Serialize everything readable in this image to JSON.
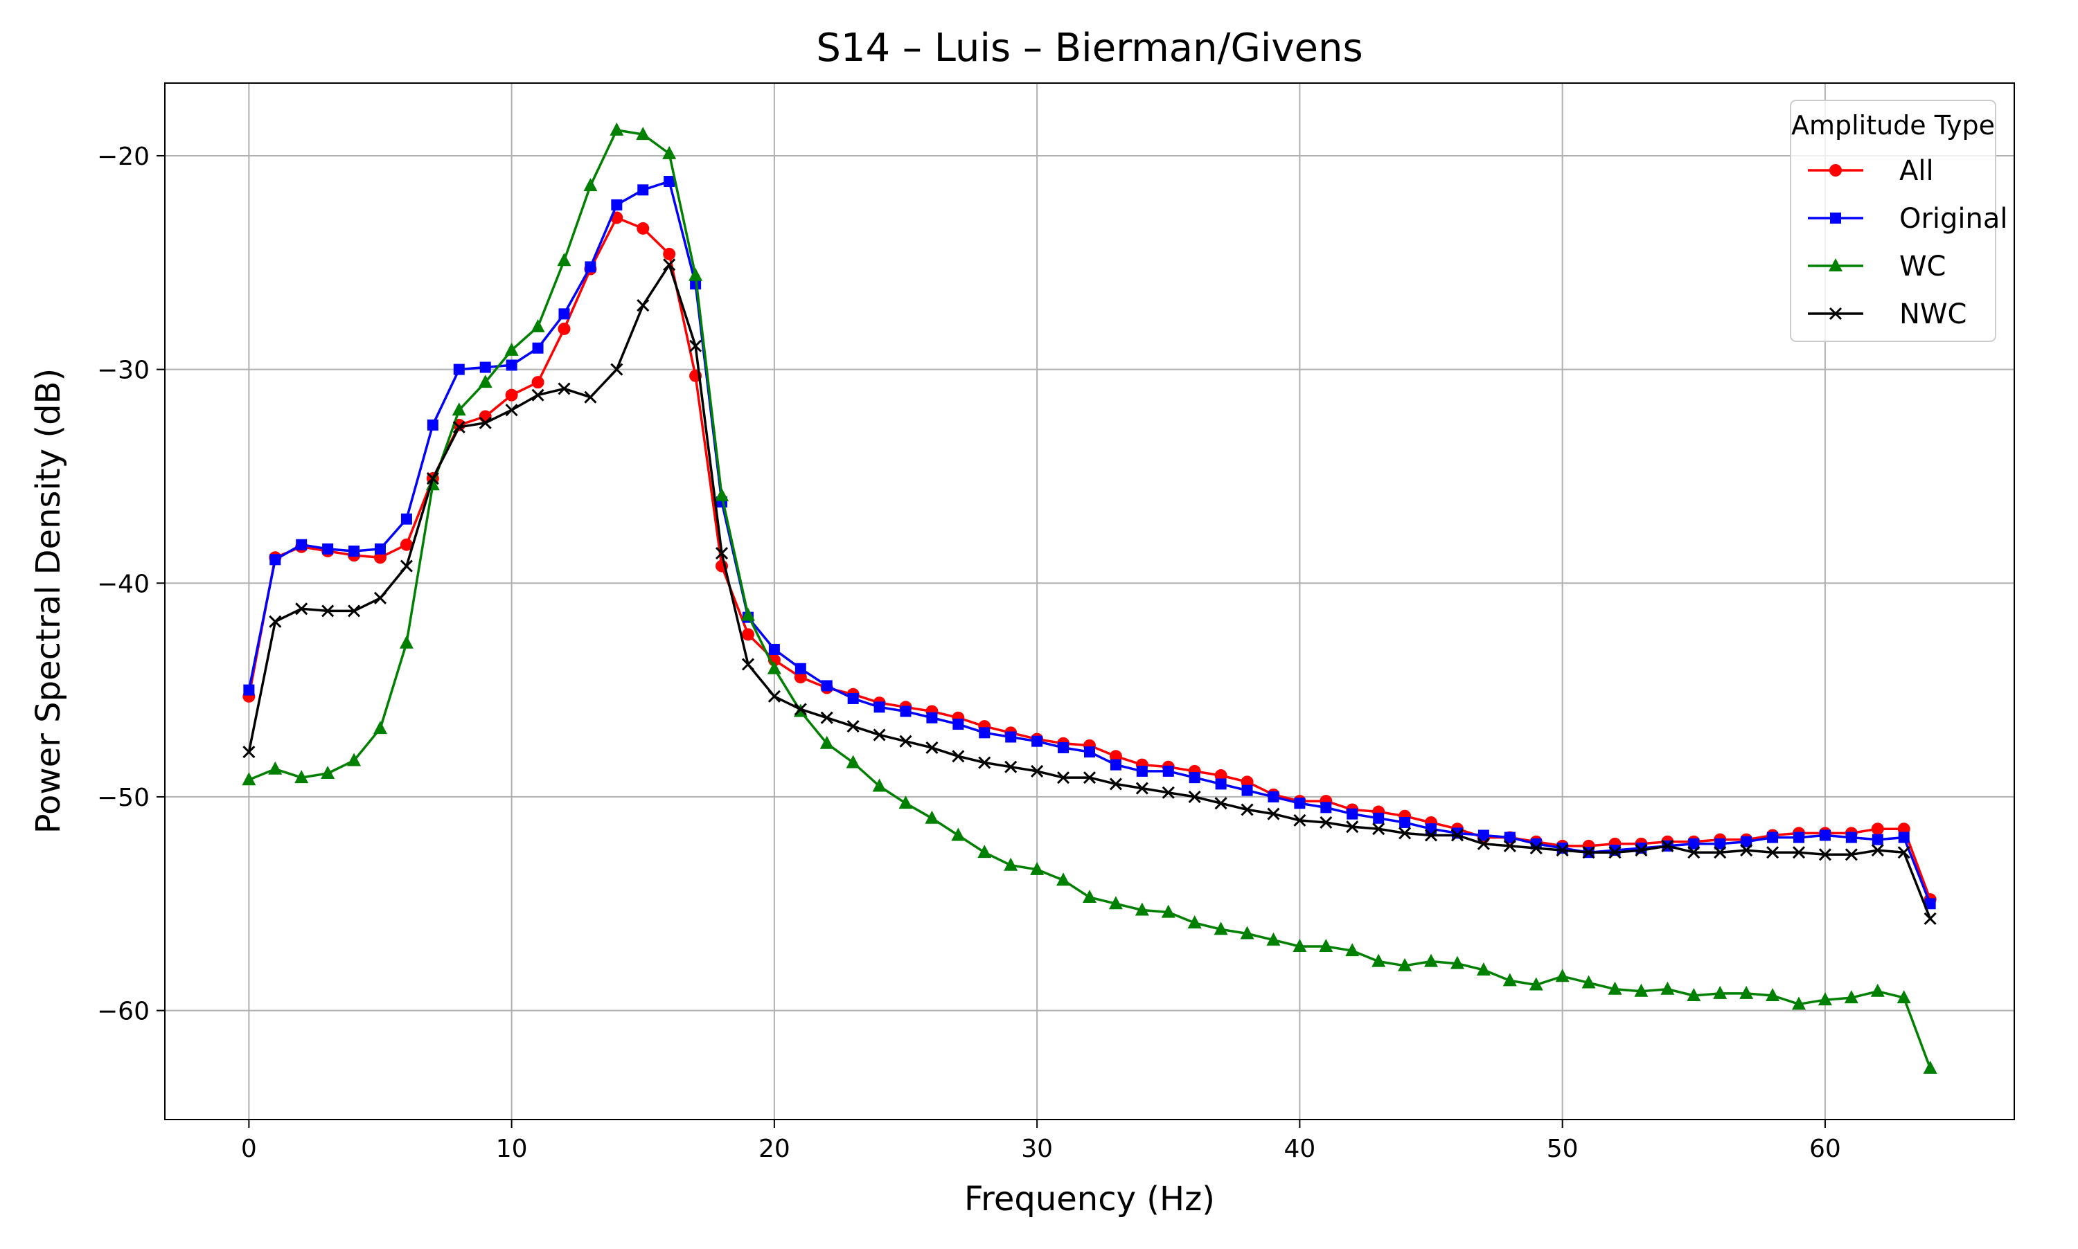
{
  "chart_data": {
    "type": "line",
    "title": "S14 – Luis – Bierman/Givens",
    "xlabel": "Frequency (Hz)",
    "ylabel": "Power Spectral Density (dB)",
    "xlim": [
      -3.2,
      67.2
    ],
    "ylim": [
      -65.1,
      -16.6
    ],
    "xticks": [
      0,
      10,
      20,
      30,
      40,
      50,
      60
    ],
    "xtick_labels": [
      "0",
      "10",
      "20",
      "30",
      "40",
      "50",
      "60"
    ],
    "yticks": [
      -20,
      -30,
      -40,
      -50,
      -60
    ],
    "ytick_labels": [
      "−20",
      "−30",
      "−40",
      "−50",
      "−60"
    ],
    "grid": true,
    "legend": {
      "title": "Amplitude Type",
      "position": "top-right"
    },
    "x": [
      0,
      1,
      2,
      3,
      4,
      5,
      6,
      7,
      8,
      9,
      10,
      11,
      12,
      13,
      14,
      15,
      16,
      17,
      18,
      19,
      20,
      21,
      22,
      23,
      24,
      25,
      26,
      27,
      28,
      29,
      30,
      31,
      32,
      33,
      34,
      35,
      36,
      37,
      38,
      39,
      40,
      41,
      42,
      43,
      44,
      45,
      46,
      47,
      48,
      49,
      50,
      51,
      52,
      53,
      54,
      55,
      56,
      57,
      58,
      59,
      60,
      61,
      62,
      63,
      64
    ],
    "series": [
      {
        "name": "All",
        "color": "#ff0000",
        "marker": "circle",
        "values": [
          -45.3,
          -38.8,
          -38.3,
          -38.5,
          -38.7,
          -38.8,
          -38.2,
          -35.1,
          -32.6,
          -32.2,
          -31.2,
          -30.6,
          -28.1,
          -25.3,
          -22.9,
          -23.4,
          -24.6,
          -30.3,
          -39.2,
          -42.4,
          -43.6,
          -44.4,
          -44.9,
          -45.2,
          -45.6,
          -45.8,
          -46.0,
          -46.3,
          -46.7,
          -47.0,
          -47.3,
          -47.5,
          -47.6,
          -48.1,
          -48.5,
          -48.6,
          -48.8,
          -49.0,
          -49.3,
          -49.9,
          -50.2,
          -50.2,
          -50.6,
          -50.7,
          -50.9,
          -51.2,
          -51.5,
          -51.9,
          -51.9,
          -52.1,
          -52.3,
          -52.3,
          -52.2,
          -52.2,
          -52.1,
          -52.1,
          -52.0,
          -52.0,
          -51.8,
          -51.7,
          -51.7,
          -51.7,
          -51.5,
          -51.5,
          -54.8
        ]
      },
      {
        "name": "Original",
        "color": "#0000ff",
        "marker": "square",
        "values": [
          -45.0,
          -38.9,
          -38.2,
          -38.4,
          -38.5,
          -38.4,
          -37.0,
          -32.6,
          -30.0,
          -29.9,
          -29.8,
          -29.0,
          -27.4,
          -25.2,
          -22.3,
          -21.6,
          -21.2,
          -26.0,
          -36.2,
          -41.6,
          -43.1,
          -44.0,
          -44.8,
          -45.4,
          -45.8,
          -46.0,
          -46.3,
          -46.6,
          -47.0,
          -47.2,
          -47.4,
          -47.7,
          -47.9,
          -48.5,
          -48.8,
          -48.8,
          -49.1,
          -49.4,
          -49.7,
          -50.0,
          -50.3,
          -50.5,
          -50.8,
          -51.0,
          -51.2,
          -51.5,
          -51.7,
          -51.8,
          -51.9,
          -52.2,
          -52.4,
          -52.6,
          -52.5,
          -52.4,
          -52.3,
          -52.2,
          -52.2,
          -52.1,
          -51.9,
          -51.9,
          -51.8,
          -51.9,
          -52.0,
          -51.9,
          -55.0
        ]
      },
      {
        "name": "WC",
        "color": "#008000",
        "marker": "triangle",
        "values": [
          -49.2,
          -48.7,
          -49.1,
          -48.9,
          -48.3,
          -46.8,
          -42.8,
          -35.4,
          -31.9,
          -30.6,
          -29.1,
          -28.0,
          -24.9,
          -21.4,
          -18.8,
          -19.0,
          -19.9,
          -25.6,
          -35.9,
          -41.5,
          -44.0,
          -46.0,
          -47.5,
          -48.4,
          -49.5,
          -50.3,
          -51.0,
          -51.8,
          -52.6,
          -53.2,
          -53.4,
          -53.9,
          -54.7,
          -55.0,
          -55.3,
          -55.4,
          -55.9,
          -56.2,
          -56.4,
          -56.7,
          -57.0,
          -57.0,
          -57.2,
          -57.7,
          -57.9,
          -57.7,
          -57.8,
          -58.1,
          -58.6,
          -58.8,
          -58.4,
          -58.7,
          -59.0,
          -59.1,
          -59.0,
          -59.3,
          -59.2,
          -59.2,
          -59.3,
          -59.7,
          -59.5,
          -59.4,
          -59.1,
          -59.4,
          -62.7
        ]
      },
      {
        "name": "NWC",
        "color": "#000000",
        "marker": "x",
        "values": [
          -47.9,
          -41.8,
          -41.2,
          -41.3,
          -41.3,
          -40.7,
          -39.2,
          -35.1,
          -32.7,
          -32.5,
          -31.9,
          -31.2,
          -30.9,
          -31.3,
          -30.0,
          -27.0,
          -25.1,
          -28.9,
          -38.6,
          -43.8,
          -45.3,
          -45.9,
          -46.3,
          -46.7,
          -47.1,
          -47.4,
          -47.7,
          -48.1,
          -48.4,
          -48.6,
          -48.8,
          -49.1,
          -49.1,
          -49.4,
          -49.6,
          -49.8,
          -50.0,
          -50.3,
          -50.6,
          -50.8,
          -51.1,
          -51.2,
          -51.4,
          -51.5,
          -51.7,
          -51.8,
          -51.8,
          -52.2,
          -52.3,
          -52.4,
          -52.5,
          -52.6,
          -52.6,
          -52.5,
          -52.3,
          -52.6,
          -52.6,
          -52.5,
          -52.6,
          -52.6,
          -52.7,
          -52.7,
          -52.5,
          -52.6,
          -55.7
        ]
      }
    ]
  }
}
